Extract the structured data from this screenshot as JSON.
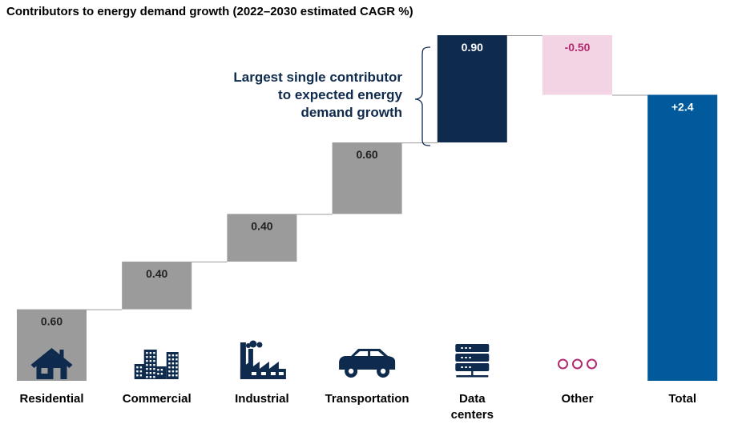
{
  "title": "Contributors to energy demand growth (2022–2030 estimated CAGR %)",
  "annotation": {
    "text_lines": [
      "Largest single contributor",
      "to expected energy",
      "demand growth"
    ],
    "color": "#0e2a4d"
  },
  "colors": {
    "contribution": "#9b9b9b",
    "highlight": "#0e2a4d",
    "negative": "#f2d4e4",
    "negative_text": "#b22a6e",
    "total": "#005a9c",
    "icon": "#0e2a4d",
    "connector": "#9b9b9b"
  },
  "icons": [
    "house-icon",
    "office-buildings-icon",
    "factory-icon",
    "car-icon",
    "server-rack-icon",
    "three-circles-icon",
    ""
  ],
  "chart_data": {
    "type": "waterfall",
    "title": "Contributors to energy demand growth (2022–2030 estimated CAGR %)",
    "categories": [
      [
        "Residential"
      ],
      [
        "Commercial"
      ],
      [
        "Industrial"
      ],
      [
        "Transportation"
      ],
      [
        "Data",
        "centers"
      ],
      [
        "Other"
      ],
      [
        "Total"
      ]
    ],
    "values": [
      0.6,
      0.4,
      0.4,
      0.6,
      0.9,
      -0.5,
      2.4
    ],
    "labels": [
      "0.60",
      "0.40",
      "0.40",
      "0.60",
      "0.90",
      "-0.50",
      "+2.4"
    ],
    "kinds": [
      "contribution",
      "contribution",
      "contribution",
      "contribution",
      "highlight",
      "negative",
      "total"
    ],
    "ylim": [
      0,
      2.9
    ],
    "xlabel": "",
    "ylabel": "",
    "grid": false
  }
}
